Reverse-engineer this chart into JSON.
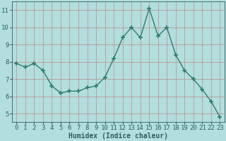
{
  "x": [
    0,
    1,
    2,
    3,
    4,
    5,
    6,
    7,
    8,
    9,
    10,
    11,
    12,
    13,
    14,
    15,
    16,
    17,
    18,
    19,
    20,
    21,
    22,
    23
  ],
  "y": [
    7.9,
    7.7,
    7.9,
    7.5,
    6.6,
    6.2,
    6.3,
    6.3,
    6.5,
    6.6,
    7.1,
    8.2,
    9.4,
    10.0,
    9.4,
    11.1,
    9.5,
    10.0,
    8.4,
    7.5,
    7.0,
    6.4,
    5.7,
    4.8
  ],
  "xlabel": "Humidex (Indice chaleur)",
  "ylim": [
    4.5,
    11.5
  ],
  "xlim": [
    -0.5,
    23.5
  ],
  "yticks": [
    5,
    6,
    7,
    8,
    9,
    10,
    11
  ],
  "xticks": [
    0,
    1,
    2,
    3,
    4,
    5,
    6,
    7,
    8,
    9,
    10,
    11,
    12,
    13,
    14,
    15,
    16,
    17,
    18,
    19,
    20,
    21,
    22,
    23
  ],
  "line_color": "#2e7d6e",
  "marker": "+",
  "marker_size": 4,
  "linewidth": 1.0,
  "bg_color": "#b2dede",
  "grid_color": "#c08888",
  "axes_color": "#2e5f5f",
  "xlabel_fontsize": 7,
  "tick_fontsize": 6.5
}
